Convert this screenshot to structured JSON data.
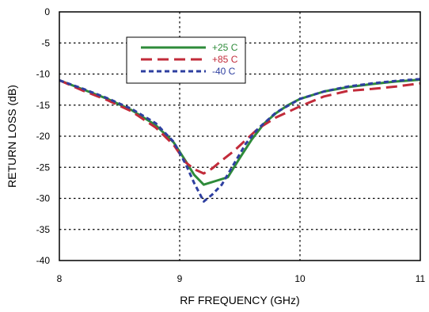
{
  "chart_data": {
    "type": "line",
    "title": "",
    "xlabel": "RF FREQUENCY (GHz)",
    "ylabel": "RETURN LOSS (dB)",
    "xlim": [
      8,
      11
    ],
    "ylim": [
      -40,
      0
    ],
    "x_ticks": [
      8,
      9,
      10,
      11
    ],
    "y_ticks": [
      0,
      -5,
      -10,
      -15,
      -20,
      -25,
      -30,
      -35,
      -40
    ],
    "x_tick_labels": [
      "8",
      "9",
      "10",
      "11"
    ],
    "y_tick_labels": [
      "0",
      "-5",
      "-10",
      "-15",
      "-20",
      "-25",
      "-30",
      "-35",
      "-40"
    ],
    "grid": true,
    "legend_position": "upper-left-center",
    "series": [
      {
        "name": "+25 C",
        "color": "#2e8b3a",
        "style": "solid",
        "points": [
          [
            8.0,
            -11.0
          ],
          [
            8.2,
            -12.5
          ],
          [
            8.4,
            -14.0
          ],
          [
            8.6,
            -15.8
          ],
          [
            8.8,
            -18.2
          ],
          [
            8.95,
            -21.0
          ],
          [
            9.05,
            -24.0
          ],
          [
            9.12,
            -26.2
          ],
          [
            9.2,
            -27.8
          ],
          [
            9.3,
            -27.2
          ],
          [
            9.4,
            -26.6
          ],
          [
            9.5,
            -23.5
          ],
          [
            9.6,
            -20.5
          ],
          [
            9.7,
            -18.0
          ],
          [
            9.8,
            -16.3
          ],
          [
            9.9,
            -15.0
          ],
          [
            10.0,
            -14.0
          ],
          [
            10.2,
            -12.8
          ],
          [
            10.4,
            -12.1
          ],
          [
            10.6,
            -11.6
          ],
          [
            10.8,
            -11.2
          ],
          [
            11.0,
            -10.9
          ]
        ]
      },
      {
        "name": "+85 C",
        "color": "#c22b3a",
        "style": "dashed",
        "points": [
          [
            8.0,
            -11.0
          ],
          [
            8.2,
            -12.7
          ],
          [
            8.4,
            -14.2
          ],
          [
            8.6,
            -16.0
          ],
          [
            8.8,
            -18.6
          ],
          [
            8.95,
            -21.4
          ],
          [
            9.05,
            -24.2
          ],
          [
            9.12,
            -25.3
          ],
          [
            9.2,
            -26.0
          ],
          [
            9.27,
            -25.2
          ],
          [
            9.35,
            -23.9
          ],
          [
            9.45,
            -22.4
          ],
          [
            9.55,
            -20.6
          ],
          [
            9.65,
            -18.8
          ],
          [
            9.8,
            -17.0
          ],
          [
            10.0,
            -15.2
          ],
          [
            10.2,
            -13.6
          ],
          [
            10.4,
            -12.7
          ],
          [
            10.6,
            -12.4
          ],
          [
            10.8,
            -12.0
          ],
          [
            11.0,
            -11.5
          ]
        ]
      },
      {
        "name": "-40 C",
        "color": "#2e3fa0",
        "style": "dashed-short",
        "points": [
          [
            8.0,
            -11.0
          ],
          [
            8.2,
            -12.4
          ],
          [
            8.4,
            -13.9
          ],
          [
            8.6,
            -15.6
          ],
          [
            8.8,
            -17.9
          ],
          [
            8.95,
            -20.9
          ],
          [
            9.05,
            -24.5
          ],
          [
            9.12,
            -27.5
          ],
          [
            9.2,
            -30.5
          ],
          [
            9.27,
            -29.4
          ],
          [
            9.35,
            -27.8
          ],
          [
            9.45,
            -24.5
          ],
          [
            9.55,
            -21.2
          ],
          [
            9.65,
            -18.8
          ],
          [
            9.8,
            -16.2
          ],
          [
            10.0,
            -14.0
          ],
          [
            10.2,
            -12.8
          ],
          [
            10.4,
            -12.0
          ],
          [
            10.6,
            -11.5
          ],
          [
            10.8,
            -11.1
          ],
          [
            11.0,
            -10.8
          ]
        ]
      }
    ]
  }
}
